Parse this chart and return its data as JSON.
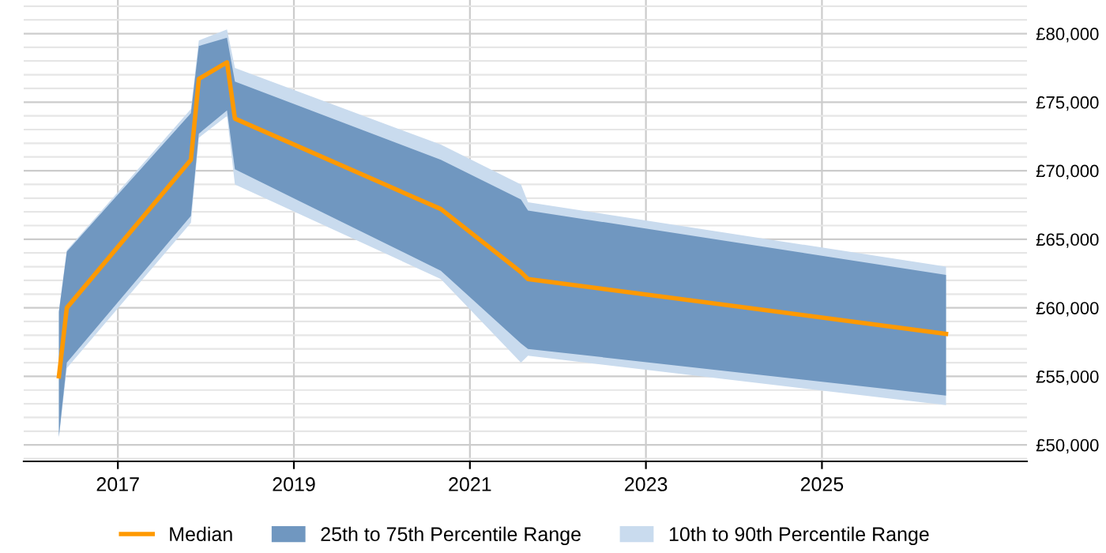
{
  "chart_data": {
    "type": "line",
    "x": [
      2016.33,
      2016.42,
      2017.83,
      2017.92,
      2018.24,
      2018.33,
      2020.67,
      2021.58,
      2021.66,
      2026.41
    ],
    "series": [
      {
        "name": "Median",
        "color": "#ff9900",
        "values": [
          55000,
          60000,
          70800,
          76700,
          77900,
          73800,
          67200,
          62600,
          62100,
          58100
        ]
      },
      {
        "name": "25th to 75th Percentile Range",
        "type": "area",
        "color": "#7097c0",
        "values": [
          null,
          null,
          null,
          null,
          null,
          null,
          null,
          null,
          null,
          null
        ],
        "lower": [
          50600,
          56000,
          66700,
          72700,
          74400,
          70100,
          62700,
          57400,
          57000,
          53600
        ],
        "upper": [
          59700,
          64100,
          74200,
          79100,
          79700,
          76500,
          70800,
          67900,
          67100,
          62400
        ]
      },
      {
        "name": "10th to 90th Percentile Range",
        "type": "area",
        "color": "#c9dbee",
        "values": [
          null,
          null,
          null,
          null,
          null,
          null,
          null,
          null,
          null,
          null
        ],
        "lower": [
          50500,
          55600,
          66200,
          72400,
          74000,
          69000,
          62100,
          56000,
          56500,
          52900
        ],
        "upper": [
          59800,
          64200,
          74500,
          79500,
          80300,
          77500,
          71900,
          69000,
          67700,
          63000
        ]
      }
    ],
    "xlim": [
      2015.93,
      2027.33
    ],
    "ylim": [
      48800,
      82450
    ],
    "xticks": [
      2017,
      2019,
      2021,
      2023,
      2025
    ],
    "yticks": [
      {
        "value": 50000,
        "label": "£50,000"
      },
      {
        "value": 55000,
        "label": "£55,000"
      },
      {
        "value": 60000,
        "label": "£60,000"
      },
      {
        "value": 65000,
        "label": "£65,000"
      },
      {
        "value": 70000,
        "label": "£70,000"
      },
      {
        "value": 75000,
        "label": "£75,000"
      },
      {
        "value": 80000,
        "label": "£80,000"
      }
    ],
    "grid": true,
    "legend": "bottom"
  }
}
